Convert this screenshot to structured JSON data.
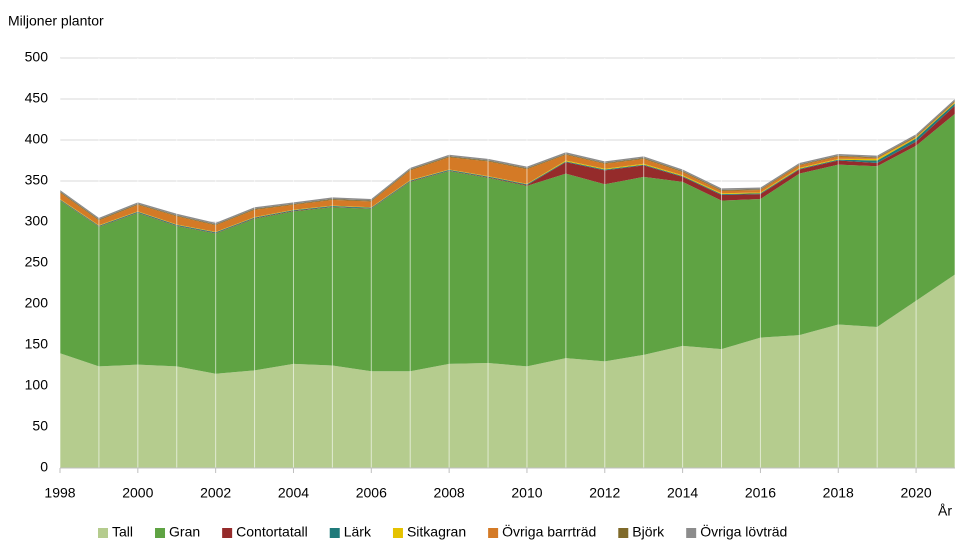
{
  "chart_data": {
    "type": "stacked_area",
    "ylabel": "Miljoner plantor",
    "xlabel": "År",
    "x": [
      1998,
      1999,
      2000,
      2001,
      2002,
      2003,
      2004,
      2005,
      2006,
      2007,
      2008,
      2009,
      2010,
      2011,
      2012,
      2013,
      2014,
      2015,
      2016,
      2017,
      2018,
      2019,
      2020,
      2021
    ],
    "series": [
      {
        "name": "Tall",
        "color": "#b5cc8e",
        "values": [
          140,
          124,
          126,
          124,
          115,
          119,
          127,
          125,
          118,
          118,
          127,
          128,
          124,
          134,
          130,
          138,
          149,
          145,
          159,
          162,
          175,
          172,
          204,
          236
        ]
      },
      {
        "name": "Gran",
        "color": "#5fa343",
        "values": [
          186,
          170,
          185,
          171,
          171,
          185,
          186,
          193,
          198,
          231,
          235,
          226,
          220,
          225,
          216,
          217,
          200,
          181,
          169,
          197,
          195,
          196,
          189,
          196
        ]
      },
      {
        "name": "Contortatall",
        "color": "#952b2b",
        "values": [
          0.5,
          0.5,
          0.5,
          0.5,
          0.5,
          0.5,
          0.5,
          0.5,
          0.5,
          0.5,
          0.5,
          0.5,
          1,
          14,
          17,
          14,
          6,
          7,
          6,
          5,
          5,
          4,
          5,
          10
        ]
      },
      {
        "name": "Lärk",
        "color": "#1f7a7a",
        "values": [
          1,
          1,
          1,
          1,
          1,
          1,
          1,
          1,
          1,
          1,
          1,
          1,
          1,
          1,
          1,
          1,
          1,
          1,
          1,
          1,
          1,
          3,
          4,
          3
        ]
      },
      {
        "name": "Sitkagran",
        "color": "#e5c200",
        "values": [
          0.5,
          0.5,
          0.5,
          0.5,
          0.5,
          0.5,
          0.5,
          0.5,
          0.5,
          0.5,
          0.5,
          0.5,
          0.5,
          1,
          1,
          1,
          1,
          1,
          1,
          1,
          1,
          2,
          1,
          1
        ]
      },
      {
        "name": "Övriga barrträd",
        "color": "#d47a26",
        "values": [
          8,
          6,
          8,
          10,
          8,
          9,
          6,
          7,
          7,
          12,
          15,
          18,
          18,
          7,
          6,
          6,
          4,
          3,
          3,
          3,
          3,
          1,
          1,
          1
        ]
      },
      {
        "name": "Björk",
        "color": "#7f6a2a",
        "values": [
          1,
          1,
          1,
          1,
          1,
          1,
          1,
          1,
          1,
          1,
          1,
          1,
          1,
          1,
          1,
          1,
          1,
          1,
          1,
          1,
          1,
          1,
          1,
          1
        ]
      },
      {
        "name": "Övriga lövträd",
        "color": "#8c8c8c",
        "values": [
          2,
          2,
          2,
          2,
          2,
          2,
          2,
          2,
          2,
          2,
          2,
          2,
          2,
          2,
          2,
          2,
          2,
          2,
          2,
          2,
          2,
          2,
          2,
          2
        ]
      }
    ],
    "xlim": [
      1998,
      2021
    ],
    "xticks": [
      1998,
      2000,
      2002,
      2004,
      2006,
      2008,
      2010,
      2012,
      2014,
      2016,
      2018,
      2020
    ],
    "ylim": [
      0,
      500
    ],
    "yticks": [
      0,
      50,
      100,
      150,
      200,
      250,
      300,
      350,
      400,
      450,
      500
    ],
    "grid": true,
    "legend": "bottom"
  }
}
